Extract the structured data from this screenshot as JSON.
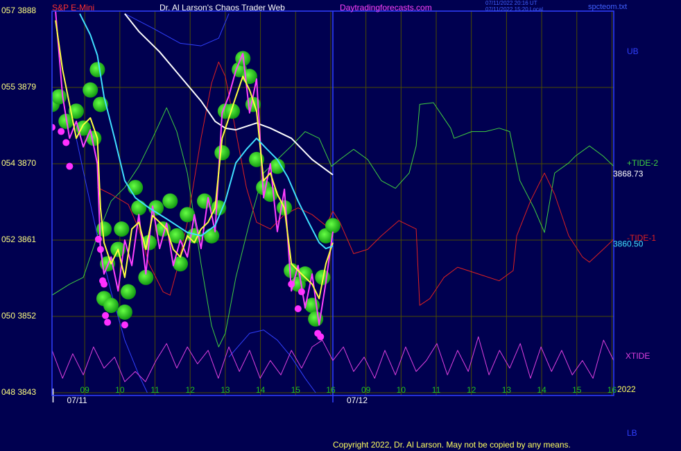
{
  "chart_data": {
    "type": "line",
    "instrument": "S&P E-Mini",
    "title": "Dr. Al Larson's Chaos Trader Web",
    "site": "Daytradingforecasts.com",
    "timestamps": [
      "07/11/2022 20:16 UT",
      "07/11/2022 15:20 Local"
    ],
    "file": "spcteom.txt",
    "year": "2022",
    "copyright": "Copyright 2022, Dr. Al Larson. May not be copied by any means.",
    "xlim": [
      8.07,
      24.05
    ],
    "ylim": [
      3843,
      3888
    ],
    "grid": true,
    "yticks": [
      {
        "value": 3843,
        "label": "048 3843"
      },
      {
        "value": 3852,
        "label": "050 3852"
      },
      {
        "value": 3861,
        "label": "052 3861"
      },
      {
        "value": 3870,
        "label": "054 3870"
      },
      {
        "value": 3879,
        "label": "055 3879"
      },
      {
        "value": 3888,
        "label": "057 3888"
      }
    ],
    "xticks": [
      {
        "value": 9,
        "label": "09"
      },
      10,
      11,
      12,
      13,
      14,
      15,
      16,
      {
        "value": 17,
        "label": "09"
      },
      {
        "value": 18,
        "label": "10"
      },
      {
        "value": 19,
        "label": "11"
      },
      {
        "value": 20,
        "label": "12"
      },
      {
        "value": 21,
        "label": "13"
      },
      {
        "value": 22,
        "label": "14"
      },
      {
        "value": 23,
        "label": "15"
      },
      {
        "value": 24,
        "label": "16"
      }
    ],
    "date_ticks": [
      {
        "value": 8.1,
        "label": "07/11"
      },
      {
        "value": 16.06,
        "label": "07/12"
      }
    ],
    "end_labels": [
      {
        "value": 3868.73,
        "color": "#ffffff"
      },
      {
        "value": 3860.5,
        "label": "3860.50",
        "color": "#40e0ff"
      }
    ],
    "series": [
      {
        "name": "+TIDE-2",
        "color": "#40d040",
        "marker": "line",
        "width": 1,
        "x": [
          8.07,
          8.57,
          8.96,
          9.36,
          9.75,
          10.14,
          10.54,
          10.93,
          11.33,
          11.62,
          11.92,
          12.31,
          12.61,
          12.81,
          13,
          13.3,
          13.69,
          14.09,
          14.48,
          14.88,
          15.27,
          15.67,
          16.02,
          16.26,
          16.65,
          17.05,
          17.44,
          17.84,
          18.23,
          18.43,
          18.53,
          18.92,
          19.41,
          19.51,
          20.01,
          20.4,
          20.79,
          21.09,
          21.38,
          21.78,
          22.08,
          22.37,
          22.77,
          22.96,
          23.36,
          23.75,
          24.05
        ],
        "values": [
          3854.5,
          3855.8,
          3856.6,
          3861.5,
          3865.6,
          3867.2,
          3869.7,
          3873,
          3876.6,
          3873.8,
          3868.9,
          3858.2,
          3850.9,
          3848.4,
          3850,
          3856.6,
          3863.1,
          3868.9,
          3870.5,
          3872.1,
          3873.8,
          3873,
          3869.7,
          3870.5,
          3871.7,
          3870.5,
          3868,
          3867.1,
          3868.9,
          3872.1,
          3877,
          3877.2,
          3874.2,
          3873,
          3873.8,
          3873.8,
          3874.2,
          3873.8,
          3868,
          3864.8,
          3861.9,
          3868.9,
          3870.1,
          3870.9,
          3872.1,
          3870.9,
          3869.7
        ]
      },
      {
        "name": "-TIDE-1",
        "color": "#e02020",
        "marker": "line",
        "width": 1,
        "x": [
          9.36,
          9.75,
          10.24,
          10.54,
          10.83,
          11.23,
          11.43,
          11.62,
          11.92,
          12.31,
          12.61,
          12.81,
          13,
          13.3,
          13.6,
          13.89,
          14.28,
          14.68,
          15.07,
          15.47,
          15.86,
          16.06,
          16.26,
          16.65,
          17.05,
          17.44,
          17.94,
          18.43,
          18.53,
          18.82,
          19.22,
          19.61,
          20.2,
          20.79,
          21.19,
          21.29,
          21.68,
          22.08,
          22.37,
          22.77,
          23.16,
          23.36,
          23.75,
          24.05
        ],
        "values": [
          3867.2,
          3866.4,
          3865.2,
          3862.3,
          3858.2,
          3854.9,
          3854.5,
          3857.4,
          3863.1,
          3873,
          3879.5,
          3882,
          3880.3,
          3873.8,
          3867.2,
          3863.1,
          3862.3,
          3864,
          3864.8,
          3864,
          3862.7,
          3864.4,
          3863.1,
          3859.4,
          3859.9,
          3861.5,
          3863.3,
          3862.3,
          3853.3,
          3854.1,
          3856.6,
          3857.8,
          3857,
          3856.2,
          3857.4,
          3861.5,
          3865.6,
          3868.9,
          3866.4,
          3861.5,
          3859,
          3858.4,
          3859.9,
          3861.1
        ]
      },
      {
        "name": "UB",
        "color": "#3040ff",
        "marker": "line",
        "width": 1,
        "x": [
          10.14,
          10.93,
          11.72,
          12.31,
          12.81,
          13.1
        ],
        "values": [
          3887.7,
          3886,
          3884.2,
          3883.9,
          3884.8,
          3887.7
        ]
      },
      {
        "name": "LB",
        "color": "#3040ff",
        "marker": "line",
        "width": 1,
        "x": [
          8.47,
          8.76,
          9.06,
          9.36,
          9.75,
          10.14,
          10.54,
          10.78,
          null,
          13.1,
          13.69,
          14.09,
          14.48,
          14.88,
          15.27,
          15.57
        ],
        "values": [
          3878.7,
          3873,
          3867.2,
          3861.5,
          3854.9,
          3849.2,
          3845.1,
          3843,
          null,
          3847.2,
          3850,
          3850.4,
          3849.2,
          3847.2,
          3844.7,
          3843
        ]
      },
      {
        "name": "XTIDE",
        "color": "#e040e0",
        "marker": "line",
        "width": 1,
        "x": [
          8.07,
          8.37,
          8.66,
          8.96,
          9.25,
          9.55,
          9.85,
          10.14,
          10.44,
          10.73,
          11.03,
          11.33,
          11.62,
          11.92,
          12.21,
          12.51,
          12.8,
          13.1,
          13.4,
          13.69,
          13.99,
          14.28,
          14.58,
          14.88,
          15.17,
          15.47,
          15.76,
          16.06,
          16.36,
          16.65,
          16.95,
          17.25,
          17.54,
          17.84,
          18.13,
          18.43,
          18.72,
          19.02,
          19.32,
          19.61,
          19.91,
          20.2,
          20.5,
          20.8,
          21.09,
          21.39,
          21.68,
          21.98,
          22.28,
          22.57,
          22.87,
          23.16,
          23.46,
          23.76,
          24.05
        ],
        "values": [
          3848.0,
          3844.7,
          3847.6,
          3845.1,
          3848.4,
          3845.9,
          3847.2,
          3844.3,
          3845.5,
          3844.3,
          3846.8,
          3848.8,
          3845.9,
          3848.4,
          3846.4,
          3848.0,
          3844.7,
          3848.4,
          3845.5,
          3848.0,
          3844.7,
          3846.8,
          3845.1,
          3848.0,
          3845.9,
          3848.4,
          3849.2,
          3846.8,
          3848.4,
          3845.5,
          3847.2,
          3844.7,
          3848.0,
          3845.1,
          3848.4,
          3845.5,
          3846.8,
          3848.8,
          3845.1,
          3848.0,
          3845.5,
          3849.6,
          3845.1,
          3848.0,
          3845.9,
          3848.8,
          3844.7,
          3848.4,
          3845.5,
          3848.0,
          3845.1,
          3846.8,
          3844.7,
          3849.2,
          3846.8
        ]
      },
      {
        "color": "#ffffff",
        "marker": "line",
        "width": 2,
        "x": [
          10.14,
          10.54,
          11.13,
          11.72,
          12.31,
          12.71,
          13,
          13.3,
          13.89,
          14.28,
          14.88,
          15.47,
          16.06
        ],
        "values": [
          3887.7,
          3885.6,
          3883.2,
          3880.3,
          3877.4,
          3875,
          3874.2,
          3874,
          3874.8,
          3874.2,
          3873,
          3870.5,
          3868.7
        ]
      },
      {
        "color": "#22dd22",
        "marker": "bubble",
        "x": [
          8.07,
          8.27,
          8.47,
          8.76,
          8.96,
          9.16,
          9.36,
          9.45,
          9.26,
          9.55,
          9.65,
          9.55,
          9.75,
          9.95,
          10.05,
          10.24,
          10.14,
          10.44,
          10.54,
          10.74,
          10.83,
          11.03,
          11.23,
          11.43,
          11.62,
          11.72,
          11.92,
          12.12,
          12.41,
          12.61,
          12.81,
          12.91,
          13,
          13.2,
          13.4,
          13.5,
          13.69,
          13.79,
          13.89,
          14.09,
          14.28,
          14.48,
          14.68,
          14.88,
          15.07,
          15.27,
          15.47,
          15.57,
          15.77,
          15.86,
          16.06
        ],
        "values": [
          3877,
          3877.9,
          3875,
          3876.2,
          3874.2,
          3878.7,
          3881.1,
          3877,
          3873,
          3862.3,
          3858.2,
          3854.1,
          3853.3,
          3859.9,
          3862.3,
          3854.9,
          3852.5,
          3867.2,
          3864.8,
          3856.6,
          3860.7,
          3864.8,
          3862.3,
          3865.6,
          3861.5,
          3858.2,
          3864,
          3861.5,
          3865.6,
          3861.5,
          3864.8,
          3871.3,
          3876.2,
          3876.2,
          3881.1,
          3882.4,
          3880.3,
          3877,
          3870.5,
          3867.2,
          3866.4,
          3869.7,
          3864.8,
          3857.4,
          3855.8,
          3857,
          3853.3,
          3851.7,
          3856.6,
          3861.5,
          3862.7
        ]
      },
      {
        "color": "#ff30ff",
        "marker": "dot",
        "x": [
          8.07,
          8.33,
          8.47,
          8.57,
          9.39,
          9.45,
          9.51,
          9.55,
          9.59,
          9.65,
          10.14,
          15.07,
          15.17,
          14.88,
          15.63,
          15.71
        ],
        "values": [
          3874.3,
          3873.8,
          3872.5,
          3869.7,
          3861.1,
          3859.9,
          3856.2,
          3855.8,
          3852.1,
          3851.3,
          3851,
          3852.9,
          3854.9,
          3855.8,
          3850,
          3849.6
        ]
      },
      {
        "color": "#ff40ff",
        "marker": "line",
        "width": 2,
        "x": [
          8.17,
          8.37,
          8.57,
          8.76,
          8.96,
          9.16,
          9.36,
          9.45,
          9.55,
          9.75,
          9.95,
          10.14,
          10.34,
          10.54,
          10.74,
          10.93,
          11.13,
          11.33,
          11.52,
          11.72,
          11.92,
          12.12,
          12.31,
          12.51,
          12.71,
          12.91,
          13.1,
          13.3,
          13.5,
          13.69,
          13.89,
          14.09,
          14.28,
          14.48,
          14.68,
          14.88,
          15.07,
          15.27,
          15.47,
          15.67,
          15.86,
          16.06
        ],
        "values": [
          3888,
          3878,
          3873,
          3875,
          3872,
          3874,
          3870,
          3860,
          3857,
          3859,
          3855,
          3861,
          3858,
          3864,
          3857,
          3865,
          3860,
          3863,
          3858,
          3861,
          3859,
          3864,
          3860,
          3866,
          3862,
          3876,
          3878,
          3881,
          3883,
          3876,
          3880,
          3866,
          3870,
          3862,
          3867,
          3855,
          3858,
          3853,
          3857,
          3851,
          3856,
          3862
        ]
      },
      {
        "color": "#ffff40",
        "marker": "line",
        "width": 2,
        "x": [
          8.17,
          8.37,
          8.57,
          8.76,
          8.96,
          9.16,
          9.36,
          9.45,
          9.55,
          9.75,
          9.95,
          10.14,
          10.34,
          10.54,
          10.74,
          10.93,
          11.13,
          11.33,
          11.52,
          11.72,
          11.92,
          12.12,
          12.31,
          12.51,
          12.71,
          12.91,
          13.1,
          13.3,
          13.5,
          13.69,
          13.89,
          14.09,
          14.28,
          14.48,
          14.68,
          14.88,
          15.07,
          15.27,
          15.47,
          15.67,
          15.86,
          16.06
        ],
        "values": [
          3886.9,
          3881.1,
          3877,
          3873,
          3874.6,
          3875.4,
          3873,
          3864.8,
          3860.7,
          3858.2,
          3859.9,
          3856.6,
          3862.3,
          3863.1,
          3859.9,
          3863.9,
          3863.1,
          3862.3,
          3859.9,
          3859,
          3861.5,
          3860.7,
          3862.3,
          3863.1,
          3864.8,
          3873,
          3875.4,
          3877.9,
          3880.3,
          3878.7,
          3876.2,
          3868,
          3868.9,
          3866.4,
          3864.8,
          3858.2,
          3857.4,
          3856.6,
          3855.8,
          3854.1,
          3858.2,
          3860.7
        ]
      },
      {
        "color": "#40e0ff",
        "marker": "line",
        "width": 2,
        "x": [
          8.86,
          9.16,
          9.36,
          9.55,
          9.85,
          10.14,
          10.44,
          10.83,
          11.33,
          11.92,
          12.31,
          12.71,
          13,
          13.3,
          13.6,
          13.89,
          14.19,
          14.48,
          14.78,
          15.07,
          15.37,
          15.67,
          15.86,
          16.06
        ],
        "values": [
          3887.7,
          3885.2,
          3882.8,
          3877.9,
          3873,
          3868,
          3866,
          3864.8,
          3863.5,
          3861.9,
          3861.5,
          3862.7,
          3865.6,
          3870.1,
          3871.7,
          3873,
          3871.7,
          3870.5,
          3868.4,
          3865.6,
          3863.1,
          3860.7,
          3860,
          3860.3
        ]
      }
    ]
  }
}
